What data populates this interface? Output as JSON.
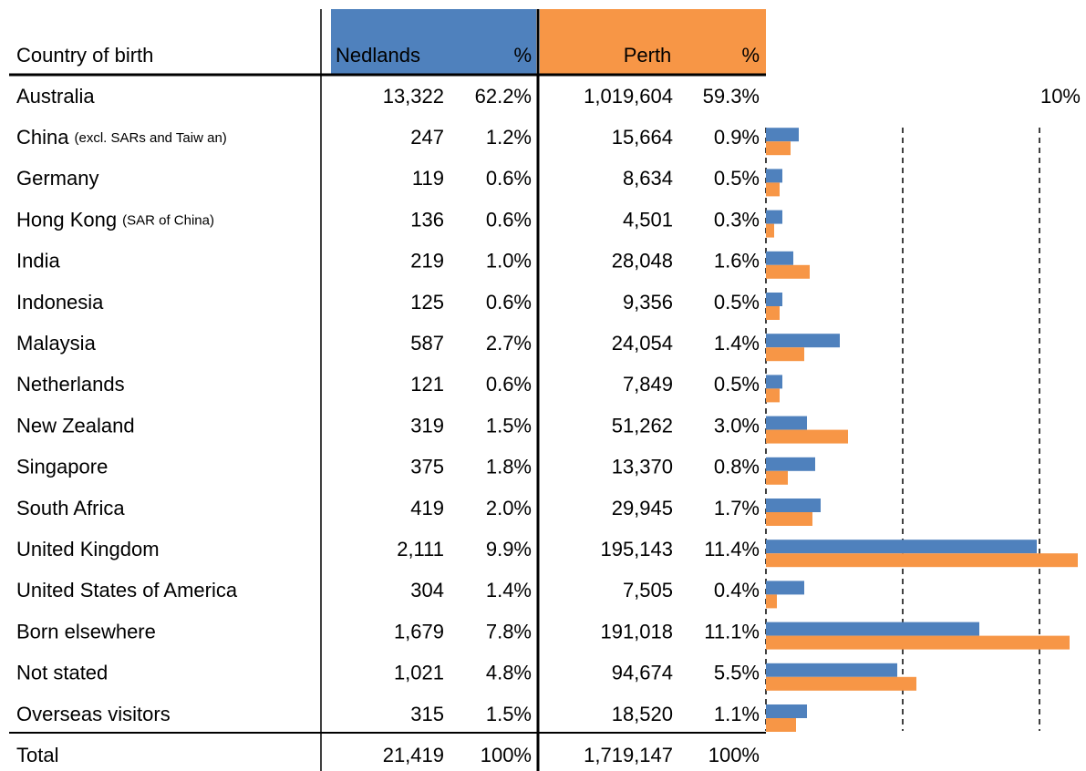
{
  "table": {
    "header": {
      "country": "Country of birth",
      "nedlands": "Nedlands",
      "nedlands_pct": "%",
      "perth": "Perth",
      "perth_pct": "%"
    },
    "rows": [
      {
        "country": "Australia",
        "nedlands": "13,322",
        "nedlands_pct": "62.2%",
        "perth": "1,019,604",
        "perth_pct": "59.3%"
      },
      {
        "country": "China",
        "note": "(excl. SARs and Taiw an)",
        "nedlands": "247",
        "perth": "15,664"
      },
      {
        "country": "Germany",
        "nedlands": "119",
        "perth": "8,634"
      },
      {
        "country": "Hong Kong",
        "note": "(SAR of China)",
        "nedlands": "136",
        "perth": "4,501"
      },
      {
        "country": "India",
        "nedlands": "219",
        "perth": "28,048"
      },
      {
        "country": "Indonesia",
        "nedlands": "125",
        "perth": "9,356"
      },
      {
        "country": "Malaysia",
        "nedlands": "587",
        "perth": "24,054"
      },
      {
        "country": "Netherlands",
        "nedlands": "121",
        "perth": "7,849"
      },
      {
        "country": "New Zealand",
        "nedlands": "319",
        "perth": "51,262"
      },
      {
        "country": "Singapore",
        "nedlands": "375",
        "perth": "13,370"
      },
      {
        "country": "South Africa",
        "nedlands": "419",
        "perth": "29,945"
      },
      {
        "country": "United Kingdom",
        "nedlands": "2,111",
        "perth": "195,143"
      },
      {
        "country": "United States of America",
        "nedlands": "304",
        "perth": "7,505"
      },
      {
        "country": "Born elsewhere",
        "nedlands": "1,679",
        "perth": "191,018"
      },
      {
        "country": "Not stated",
        "nedlands": "1,021",
        "perth": "94,674"
      },
      {
        "country": "Overseas visitors",
        "nedlands": "315",
        "perth": "18,520"
      }
    ],
    "total": {
      "country": "Total",
      "nedlands": "21,419",
      "nedlands_pct": "100%",
      "perth": "1,719,147",
      "perth_pct": "100%"
    }
  },
  "chart_data": {
    "type": "bar",
    "orientation": "horizontal",
    "series": [
      {
        "name": "Nedlands",
        "color": "#4f81bd",
        "values": [
          1.2,
          0.6,
          0.6,
          1.0,
          0.6,
          2.7,
          0.6,
          1.5,
          1.8,
          2.0,
          9.9,
          1.4,
          7.8,
          4.8,
          1.5
        ],
        "value_labels": [
          "1.2%",
          "0.6%",
          "0.6%",
          "1.0%",
          "0.6%",
          "2.7%",
          "0.6%",
          "1.5%",
          "1.8%",
          "2.0%",
          "9.9%",
          "1.4%",
          "7.8%",
          "4.8%",
          "1.5%"
        ]
      },
      {
        "name": "Perth",
        "color": "#f79646",
        "values": [
          0.9,
          0.5,
          0.3,
          1.6,
          0.5,
          1.4,
          0.5,
          3.0,
          0.8,
          1.7,
          11.4,
          0.4,
          11.1,
          5.5,
          1.1
        ],
        "value_labels": [
          "0.9%",
          "0.5%",
          "0.3%",
          "1.6%",
          "0.5%",
          "1.4%",
          "0.5%",
          "3.0%",
          "0.8%",
          "1.7%",
          "11.4%",
          "0.4%",
          "11.1%",
          "5.5%",
          "1.1%"
        ]
      }
    ],
    "xlim": [
      0,
      11.6
    ],
    "xticks": [
      0,
      5,
      {
        "value": 10,
        "label": "10%"
      }
    ],
    "grid": true,
    "grid_style": "dashed"
  }
}
